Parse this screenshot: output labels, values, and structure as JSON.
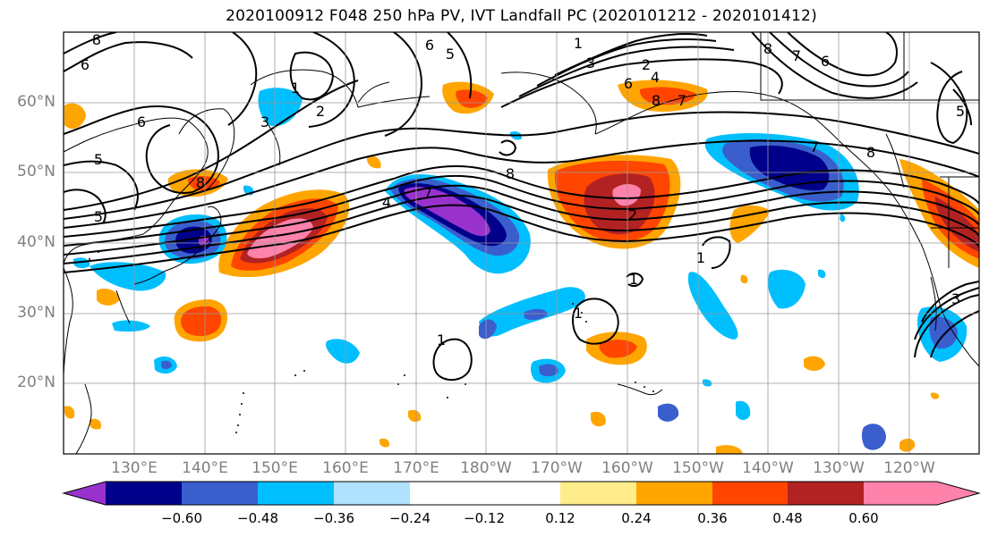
{
  "title": "2020100912 F048 250 hPa PV, IVT Landfall PC (2020101212 - 2020101412)",
  "lat_labels": [
    "60°N",
    "50°N",
    "40°N",
    "30°N",
    "20°N"
  ],
  "lon_labels": [
    "130°E",
    "140°E",
    "150°E",
    "160°E",
    "170°E",
    "180°W",
    "170°W",
    "160°W",
    "150°W",
    "140°W",
    "130°W",
    "120°W"
  ],
  "colorbar": {
    "tick_labels": [
      "−0.60",
      "−0.48",
      "−0.36",
      "−0.24",
      "−0.12",
      "0.12",
      "0.24",
      "0.36",
      "0.48",
      "0.60"
    ],
    "colors": [
      "#9932cc",
      "#00008b",
      "#3a5fcd",
      "#00bfff",
      "#b0e2ff",
      "#ffffff",
      "#ffec8b",
      "#ffa500",
      "#ff4500",
      "#b22222",
      "#ff82ab"
    ]
  },
  "contour_labels": [
    "8",
    "6",
    "5",
    "3",
    "1",
    "2",
    "6",
    "5",
    "1",
    "3",
    "2",
    "4",
    "6",
    "8",
    "7",
    "6",
    "7",
    "8",
    "5",
    "8",
    "8",
    "5",
    "6",
    "7",
    "4",
    "7",
    "3",
    "2",
    "1",
    "1",
    "1",
    "1",
    "8"
  ]
}
